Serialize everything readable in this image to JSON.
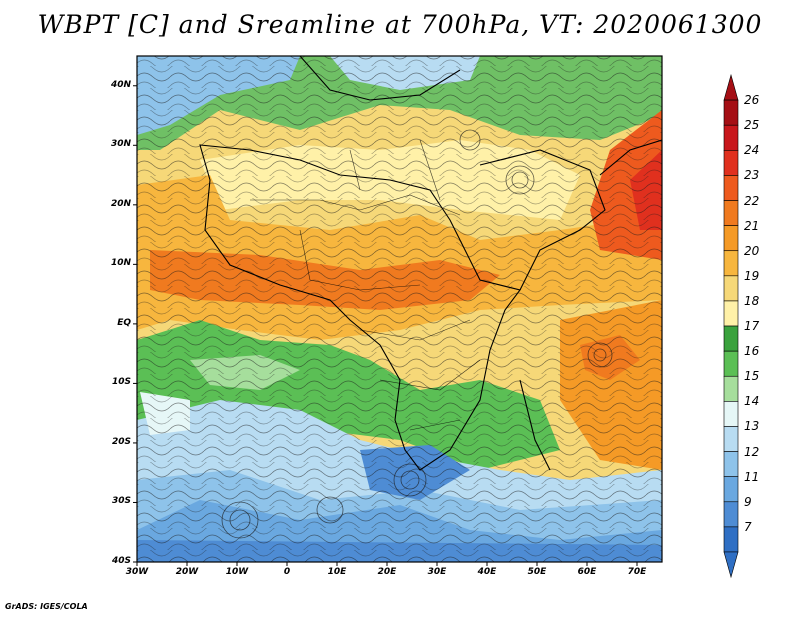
{
  "title": "WBPT [C] and Sreamline at 700hPa, VT: 2020061300",
  "credit": "GrADS: IGES/COLA",
  "map": {
    "lat_ticks": [
      "40N",
      "30N",
      "20N",
      "10N",
      "EQ",
      "10S",
      "20S",
      "30S",
      "40S"
    ],
    "lon_ticks": [
      "30W",
      "20W",
      "10W",
      "0",
      "10E",
      "20E",
      "30E",
      "40E",
      "50E",
      "60E",
      "70E"
    ],
    "lat_range": [
      -40,
      45
    ],
    "lon_range": [
      -30,
      75
    ],
    "fields": [
      "wet-bulb potential temperature (shaded)",
      "streamlines"
    ]
  },
  "colorbar": {
    "labels": [
      "26",
      "25",
      "24",
      "23",
      "22",
      "21",
      "20",
      "19",
      "18",
      "17",
      "16",
      "15",
      "14",
      "13",
      "12",
      "11",
      "9",
      "7"
    ],
    "colors": [
      "#a50f15",
      "#c8171c",
      "#e0301e",
      "#ee5a1e",
      "#f07a1f",
      "#f59a26",
      "#f7b63e",
      "#f6d878",
      "#fff1a8",
      "#3aa23d",
      "#5bbf55",
      "#a6de9c",
      "#e6f7f7",
      "#b8dcf2",
      "#8ec3ea",
      "#6aa8e0",
      "#4e8cd4",
      "#2f6fc4"
    ]
  }
}
